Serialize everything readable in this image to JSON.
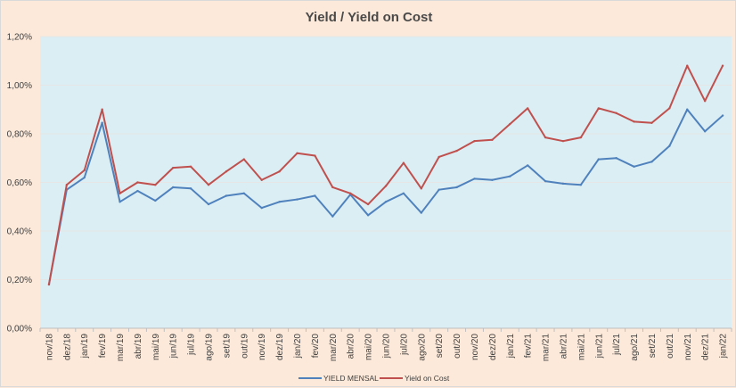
{
  "colors": {
    "page_background": "#fde9d9",
    "plot_background": "#dbeef4",
    "gridline": "#e6e6e6",
    "yield_mensal": "#4f81bd",
    "yield_on_cost": "#c0504d",
    "text": "#404040"
  },
  "chart_data": {
    "type": "line",
    "title": "Yield / Yield on Cost",
    "xlabel": "",
    "ylabel": "",
    "ylim": [
      0,
      1.2
    ],
    "y_ticks": [
      {
        "value": 0.0,
        "label": "0,00%"
      },
      {
        "value": 0.2,
        "label": "0,20%"
      },
      {
        "value": 0.4,
        "label": "0,40%"
      },
      {
        "value": 0.6,
        "label": "0,60%"
      },
      {
        "value": 0.8,
        "label": "0,80%"
      },
      {
        "value": 1.0,
        "label": "1,00%"
      },
      {
        "value": 1.2,
        "label": "1,20%"
      }
    ],
    "grid": true,
    "legend_position": "bottom",
    "categories": [
      "nov/18",
      "dez/18",
      "jan/19",
      "fev/19",
      "mar/19",
      "abr/19",
      "mai/19",
      "jun/19",
      "jul/19",
      "ago/19",
      "set/19",
      "out/19",
      "nov/19",
      "dez/19",
      "jan/20",
      "fev/20",
      "mar/20",
      "abr/20",
      "mai/20",
      "jun/20",
      "jul/20",
      "ago/20",
      "set/20",
      "out/20",
      "nov/20",
      "dez/20",
      "jan/21",
      "fev/21",
      "mar/21",
      "abr/21",
      "mai/21",
      "jun/21",
      "jul/21",
      "ago/21",
      "set/21",
      "out/21",
      "nov/21",
      "dez/21",
      "jan/22"
    ],
    "series": [
      {
        "name": "YIELD MENSAL",
        "color": "#4f81bd",
        "values": [
          0.18,
          0.57,
          0.62,
          0.845,
          0.52,
          0.565,
          0.525,
          0.58,
          0.575,
          0.51,
          0.545,
          0.555,
          0.495,
          0.52,
          0.53,
          0.545,
          0.46,
          0.55,
          0.465,
          0.52,
          0.555,
          0.475,
          0.57,
          0.58,
          0.615,
          0.61,
          0.625,
          0.67,
          0.605,
          0.595,
          0.59,
          0.695,
          0.7,
          0.665,
          0.685,
          0.75,
          0.9,
          0.81,
          0.875
        ]
      },
      {
        "name": "Yield on Cost",
        "color": "#c0504d",
        "values": [
          0.18,
          0.59,
          0.65,
          0.9,
          0.555,
          0.6,
          0.59,
          0.66,
          0.665,
          0.59,
          0.645,
          0.695,
          0.61,
          0.645,
          0.72,
          0.71,
          0.58,
          0.555,
          0.51,
          0.585,
          0.68,
          0.575,
          0.705,
          0.73,
          0.77,
          0.775,
          0.84,
          0.905,
          0.785,
          0.77,
          0.785,
          0.905,
          0.885,
          0.85,
          0.845,
          0.905,
          1.08,
          0.935,
          1.08
        ]
      }
    ]
  }
}
